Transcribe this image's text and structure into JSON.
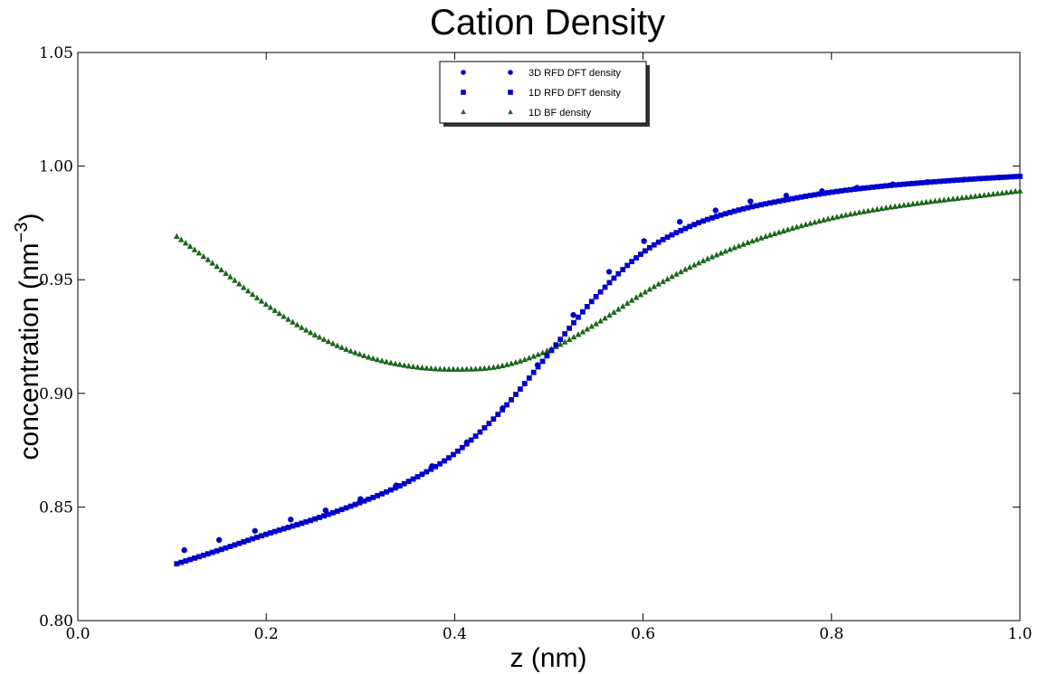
{
  "chart_data": {
    "type": "scatter",
    "title": "Cation Density",
    "xlabel": "z (nm)",
    "ylabel_main": "concentration (nm",
    "ylabel_sup": "−3",
    "ylabel_close": ")",
    "xlim": [
      0.0,
      1.0
    ],
    "ylim": [
      0.8,
      1.05
    ],
    "xticks": [
      "0.0",
      "0.2",
      "0.4",
      "0.6",
      "0.8",
      "1.0"
    ],
    "yticks": [
      "0.80",
      "0.85",
      "0.90",
      "0.95",
      "1.00",
      "1.05"
    ],
    "grid": false,
    "legend_position": "top-center",
    "series": [
      {
        "name": "3D RFD DFT density",
        "marker": "circle",
        "color": "#0000cc",
        "x": [
          0.113,
          0.15,
          0.188,
          0.226,
          0.263,
          0.3,
          0.338,
          0.376,
          0.413,
          0.451,
          0.488,
          0.526,
          0.564,
          0.601,
          0.639,
          0.677,
          0.714,
          0.752,
          0.79,
          0.827,
          0.865,
          0.902,
          0.94,
          0.978
        ],
        "y": [
          0.831,
          0.8355,
          0.8395,
          0.8445,
          0.8485,
          0.8535,
          0.8595,
          0.868,
          0.8785,
          0.8935,
          0.9125,
          0.9345,
          0.9535,
          0.967,
          0.9755,
          0.9805,
          0.9845,
          0.987,
          0.989,
          0.9905,
          0.992,
          0.993,
          0.994,
          0.995
        ]
      },
      {
        "name": "1D RFD DFT density",
        "marker": "square",
        "color": "#0000cc",
        "x": [
          0.105,
          0.15,
          0.2,
          0.25,
          0.3,
          0.35,
          0.4,
          0.45,
          0.5,
          0.55,
          0.6,
          0.65,
          0.7,
          0.75,
          0.8,
          0.85,
          0.9,
          0.95,
          1.0
        ],
        "y": [
          0.825,
          0.831,
          0.838,
          0.8445,
          0.852,
          0.861,
          0.8735,
          0.8925,
          0.9175,
          0.9425,
          0.962,
          0.9735,
          0.9805,
          0.985,
          0.9885,
          0.991,
          0.9928,
          0.9943,
          0.9955
        ]
      },
      {
        "name": "1D BF density",
        "marker": "triangle",
        "color": "#1a661a",
        "x": [
          0.105,
          0.15,
          0.2,
          0.25,
          0.3,
          0.35,
          0.4,
          0.45,
          0.5,
          0.55,
          0.6,
          0.65,
          0.7,
          0.75,
          0.8,
          0.85,
          0.9,
          0.95,
          1.0
        ],
        "y": [
          0.969,
          0.955,
          0.939,
          0.926,
          0.917,
          0.912,
          0.9105,
          0.912,
          0.919,
          0.9305,
          0.944,
          0.9555,
          0.9645,
          0.9715,
          0.977,
          0.981,
          0.984,
          0.9865,
          0.989
        ]
      }
    ]
  }
}
